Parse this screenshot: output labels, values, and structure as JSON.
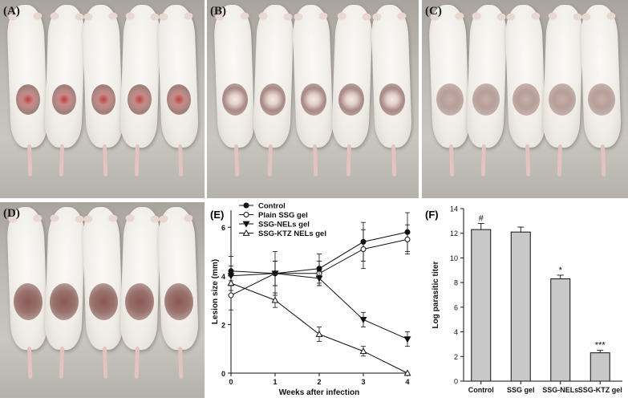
{
  "figure": {
    "panels": [
      {
        "id": "A",
        "label": "(A)",
        "mouse_count": 5,
        "lesion_style": "ulcer"
      },
      {
        "id": "B",
        "label": "(B)",
        "mouse_count": 5,
        "lesion_style": "ring"
      },
      {
        "id": "C",
        "label": "(C)",
        "mouse_count": 5,
        "lesion_style": "faint"
      },
      {
        "id": "D",
        "label": "(D)",
        "mouse_count": 5,
        "lesion_style": "healed"
      }
    ],
    "chart_e_label": "(E)",
    "chart_f_label": "(F)"
  },
  "colors": {
    "line": "#111111",
    "bar_fill": "#c8c8c8",
    "lesion_dark": "#8a5a57",
    "lesion_ulcer": "#b9413f"
  },
  "chart_data": [
    {
      "type": "line",
      "xlabel": "Weeks after infection",
      "ylabel": "Lesion size (mm)",
      "x": [
        0,
        1,
        2,
        3,
        4
      ],
      "xticks": [
        "0",
        "1",
        "2",
        "3",
        "4"
      ],
      "yticks": [
        "0",
        "2",
        "4",
        "6"
      ],
      "xlim": [
        0,
        4
      ],
      "ylim": [
        0,
        6.7
      ],
      "grid": false,
      "legend_position": "top-left",
      "series": [
        {
          "name": "Control",
          "marker": "filled-circle",
          "values": [
            4.2,
            4.1,
            4.3,
            5.4,
            5.8
          ],
          "err": [
            0.6,
            0.5,
            0.6,
            0.8,
            0.8
          ]
        },
        {
          "name": "Plain SSG gel",
          "marker": "open-circle",
          "values": [
            3.2,
            4.1,
            4.1,
            5.1,
            5.5
          ],
          "err": [
            0.6,
            0.9,
            0.5,
            0.8,
            0.6
          ]
        },
        {
          "name": "SSG-NELs gel",
          "marker": "filled-triangle-down",
          "values": [
            4.0,
            4.1,
            3.9,
            2.2,
            1.4
          ],
          "err": [
            0.4,
            0.5,
            0.3,
            0.3,
            0.3
          ]
        },
        {
          "name": "SSG-KTZ NELs gel",
          "marker": "open-triangle-up",
          "values": [
            3.7,
            3.0,
            1.6,
            0.9,
            0.0
          ],
          "err": [
            0.3,
            0.3,
            0.3,
            0.2,
            0.0
          ]
        }
      ]
    },
    {
      "type": "bar",
      "ylabel": "Log parasitic titer",
      "categories": [
        "Control",
        "SSG gel",
        "SSG-NELs",
        "SSG-KTZ gel"
      ],
      "values": [
        12.3,
        12.1,
        8.3,
        2.3
      ],
      "err": [
        0.5,
        0.4,
        0.3,
        0.2
      ],
      "annotations": [
        "#",
        "",
        "*",
        "***"
      ],
      "yticks": [
        "0",
        "2",
        "4",
        "6",
        "8",
        "10",
        "12",
        "14"
      ],
      "ylim": [
        0,
        14
      ],
      "grid": false
    }
  ]
}
